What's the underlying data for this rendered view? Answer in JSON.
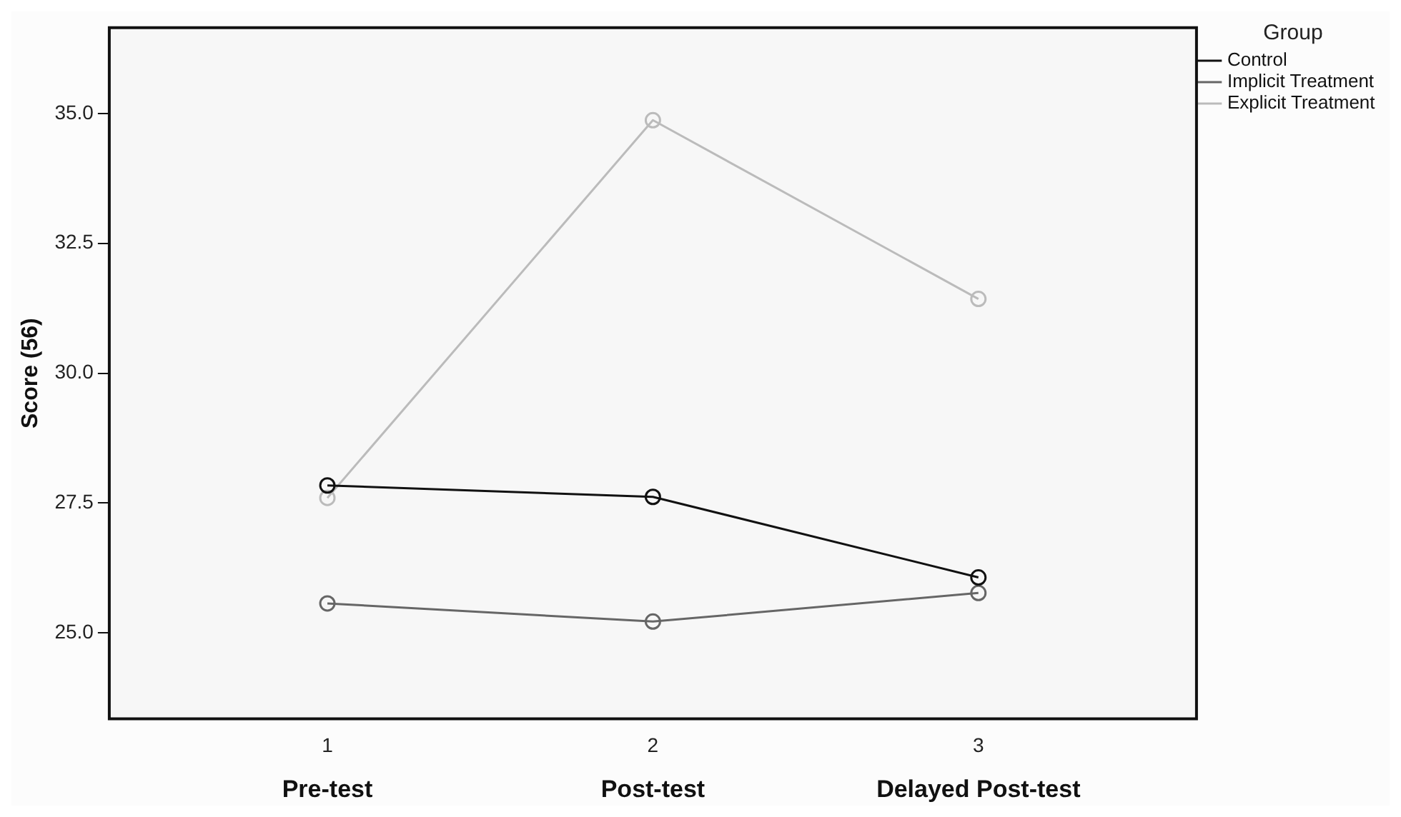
{
  "chart_data": {
    "type": "line",
    "ylabel": "Score (56)",
    "legend_title": "Group",
    "x": [
      1,
      2,
      3
    ],
    "series": [
      {
        "name": "Control",
        "color": "#111111",
        "values": [
          27.84,
          27.62,
          26.07
        ]
      },
      {
        "name": "Implicit Treatment",
        "color": "#666666",
        "values": [
          25.57,
          25.22,
          25.77
        ]
      },
      {
        "name": "Explicit Treatment",
        "color": "#bbbbbb",
        "values": [
          27.6,
          34.87,
          31.43
        ]
      }
    ],
    "xlim": [
      0.33,
      3.67
    ],
    "xticks": [
      1,
      2,
      3
    ],
    "ylim": [
      23.35,
      36.65
    ],
    "yticks": [
      {
        "value": 25,
        "label": "25.0"
      },
      {
        "value": 27.5,
        "label": "27.5"
      },
      {
        "value": 30,
        "label": "30.0"
      },
      {
        "value": 32.5,
        "label": "32.5"
      },
      {
        "value": 35,
        "label": "35.0"
      }
    ],
    "annotations": [
      "Pre-test",
      "Post-test",
      "Delayed Post-test"
    ],
    "grid": false,
    "legend": "top right",
    "marker": "circle",
    "line_style": "solid"
  }
}
